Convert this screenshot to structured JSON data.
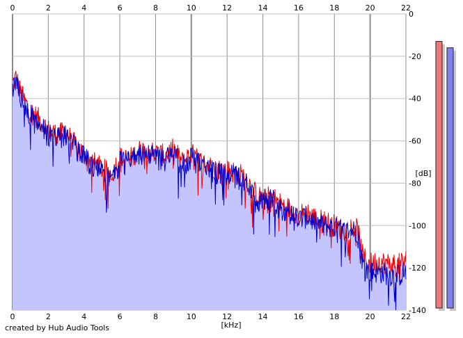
{
  "credit": "created by Hub Audio Tools",
  "chart_data": {
    "type": "area",
    "xlabel": "[kHz]",
    "ylabel": "[dB]",
    "xlim": [
      0,
      22
    ],
    "ylim": [
      -140,
      0
    ],
    "xticks": [
      0,
      2,
      4,
      6,
      8,
      10,
      12,
      14,
      16,
      18,
      20,
      22
    ],
    "yticks": [
      0,
      -20,
      -40,
      -60,
      -80,
      -100,
      -120,
      -140
    ],
    "grid": true,
    "colors": {
      "red": "#ee0000",
      "blue": "#0000cc",
      "fill": "#c4c4ff",
      "meter_red": "#ee7777",
      "meter_blue": "#8080ee"
    },
    "series": [
      {
        "x": [
          0,
          0.2,
          0.4,
          0.6,
          0.8,
          1,
          1.5,
          2,
          2.5,
          3,
          3.5,
          4,
          4.5,
          5,
          5.5,
          6,
          6.5,
          7,
          7.5,
          8,
          8.5,
          9,
          9.5,
          10,
          10.5,
          11,
          11.5,
          12,
          12.5,
          13,
          13.5,
          14,
          14.5,
          15,
          15.5,
          16,
          16.5,
          17,
          17.5,
          18,
          18.5,
          19,
          19.3,
          19.6,
          20,
          20.5,
          21,
          21.5,
          22
        ],
        "y": [
          -33,
          -30,
          -36,
          -40,
          -43,
          -46,
          -50,
          -55,
          -57,
          -56,
          -62,
          -66,
          -70,
          -73,
          -76,
          -68,
          -69,
          -65,
          -64,
          -66,
          -67,
          -64,
          -70,
          -66,
          -70,
          -72,
          -73,
          -74,
          -75,
          -77,
          -84,
          -88,
          -86,
          -90,
          -92,
          -95,
          -94,
          -97,
          -98,
          -100,
          -102,
          -101,
          -102,
          -115,
          -118,
          -117,
          -118,
          -119,
          -116
        ]
      },
      {
        "x": [
          0,
          0.2,
          0.4,
          0.6,
          0.8,
          1,
          1.5,
          2,
          2.5,
          3,
          3.5,
          4,
          4.5,
          5,
          5.5,
          6,
          6.5,
          7,
          7.5,
          8,
          8.5,
          9,
          9.5,
          10,
          10.5,
          11,
          11.5,
          12,
          12.5,
          13,
          13.5,
          14,
          14.5,
          15,
          15.5,
          16,
          16.5,
          17,
          17.5,
          18,
          18.5,
          19,
          19.3,
          19.6,
          20,
          20.5,
          21,
          21.5,
          22
        ],
        "y": [
          -36,
          -33,
          -38,
          -42,
          -45,
          -48,
          -52,
          -57,
          -59,
          -58,
          -63,
          -68,
          -72,
          -75,
          -78,
          -70,
          -70,
          -67,
          -66,
          -68,
          -69,
          -66,
          -72,
          -68,
          -72,
          -74,
          -75,
          -76,
          -77,
          -79,
          -86,
          -90,
          -88,
          -92,
          -94,
          -97,
          -96,
          -99,
          -100,
          -101,
          -103,
          -102,
          -103,
          -118,
          -122,
          -122,
          -123,
          -124,
          -122
        ]
      }
    ],
    "meters": [
      {
        "peak": -13,
        "value": -139
      },
      {
        "peak": -16,
        "value": -139
      }
    ]
  }
}
